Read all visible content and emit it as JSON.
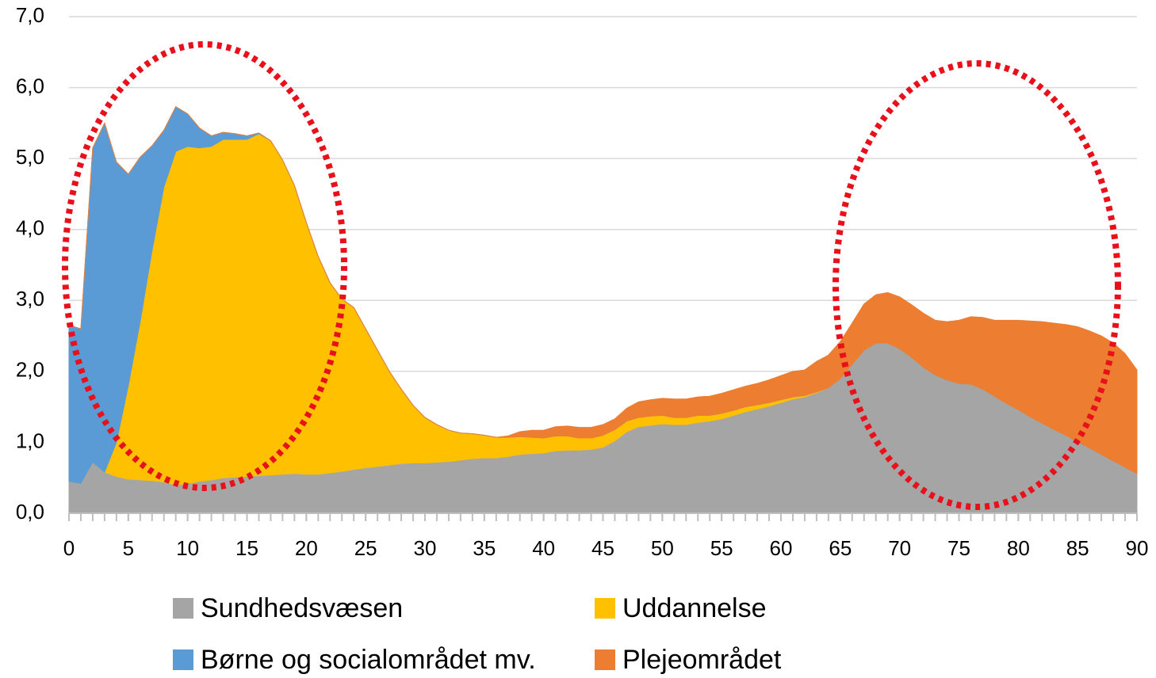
{
  "chart_data": {
    "type": "stacked_area",
    "x": [
      0,
      1,
      2,
      3,
      4,
      5,
      6,
      7,
      8,
      9,
      10,
      11,
      12,
      13,
      14,
      15,
      16,
      17,
      18,
      19,
      20,
      21,
      22,
      23,
      24,
      25,
      26,
      27,
      28,
      29,
      30,
      31,
      32,
      33,
      34,
      35,
      36,
      37,
      38,
      39,
      40,
      41,
      42,
      43,
      44,
      45,
      46,
      47,
      48,
      49,
      50,
      51,
      52,
      53,
      54,
      55,
      56,
      57,
      58,
      59,
      60,
      61,
      62,
      63,
      64,
      65,
      66,
      67,
      68,
      69,
      70,
      71,
      72,
      73,
      74,
      75,
      76,
      77,
      78,
      79,
      80,
      81,
      82,
      83,
      84,
      85,
      86,
      87,
      88,
      89,
      90
    ],
    "series": [
      {
        "name": "Sundhedsvæsen",
        "color": "#a5a5a5",
        "values": [
          0.45,
          0.42,
          0.72,
          0.58,
          0.52,
          0.48,
          0.47,
          0.46,
          0.44,
          0.4,
          0.42,
          0.45,
          0.47,
          0.5,
          0.51,
          0.52,
          0.53,
          0.54,
          0.55,
          0.56,
          0.55,
          0.55,
          0.57,
          0.59,
          0.62,
          0.64,
          0.66,
          0.68,
          0.7,
          0.71,
          0.71,
          0.72,
          0.73,
          0.75,
          0.77,
          0.78,
          0.78,
          0.8,
          0.83,
          0.84,
          0.85,
          0.88,
          0.89,
          0.89,
          0.9,
          0.93,
          1.02,
          1.15,
          1.22,
          1.24,
          1.26,
          1.25,
          1.25,
          1.28,
          1.3,
          1.33,
          1.38,
          1.43,
          1.47,
          1.51,
          1.56,
          1.61,
          1.64,
          1.7,
          1.77,
          1.9,
          2.1,
          2.3,
          2.4,
          2.4,
          2.32,
          2.2,
          2.06,
          1.95,
          1.88,
          1.83,
          1.82,
          1.75,
          1.65,
          1.55,
          1.46,
          1.36,
          1.27,
          1.18,
          1.1,
          1.01,
          0.92,
          0.83,
          0.74,
          0.65,
          0.56
        ]
      },
      {
        "name": "Uddannelse",
        "color": "#ffc000",
        "values": [
          0,
          0,
          0,
          0,
          0.48,
          1.32,
          2.23,
          3.24,
          4.16,
          4.7,
          4.75,
          4.7,
          4.7,
          4.77,
          4.76,
          4.75,
          4.82,
          4.71,
          4.43,
          4.06,
          3.55,
          3.07,
          2.68,
          2.43,
          2.28,
          1.96,
          1.64,
          1.32,
          1.05,
          0.81,
          0.64,
          0.53,
          0.44,
          0.38,
          0.35,
          0.32,
          0.29,
          0.27,
          0.25,
          0.23,
          0.21,
          0.21,
          0.2,
          0.17,
          0.16,
          0.17,
          0.16,
          0.15,
          0.13,
          0.13,
          0.12,
          0.1,
          0.1,
          0.1,
          0.08,
          0.08,
          0.07,
          0.07,
          0.06,
          0.05,
          0.04,
          0.03,
          0.02,
          0.01,
          0,
          0,
          0,
          0,
          0,
          0,
          0,
          0,
          0,
          0,
          0,
          0,
          0,
          0,
          0,
          0,
          0,
          0,
          0,
          0,
          0,
          0,
          0,
          0,
          0,
          0,
          0
        ]
      },
      {
        "name": "Børne og socialområdet mv.",
        "color": "#5b9bd5",
        "values": [
          2.2,
          2.18,
          4.43,
          4.92,
          3.95,
          2.98,
          2.32,
          1.48,
          0.8,
          0.63,
          0.46,
          0.28,
          0.15,
          0.1,
          0.08,
          0.05,
          0.01,
          0,
          0,
          0,
          0,
          0,
          0,
          0,
          0,
          0,
          0,
          0,
          0,
          0,
          0,
          0,
          0,
          0,
          0,
          0,
          0,
          0,
          0,
          0,
          0,
          0,
          0,
          0,
          0,
          0,
          0,
          0,
          0,
          0,
          0,
          0,
          0,
          0,
          0,
          0,
          0,
          0,
          0,
          0,
          0,
          0,
          0,
          0,
          0,
          0,
          0,
          0,
          0,
          0,
          0,
          0,
          0,
          0,
          0,
          0,
          0,
          0,
          0,
          0,
          0,
          0,
          0,
          0,
          0,
          0,
          0,
          0,
          0,
          0,
          0
        ]
      },
      {
        "name": "Plejeområdet",
        "color": "#ed7d31",
        "values": [
          0,
          0,
          0,
          0,
          0,
          0,
          0,
          0,
          0,
          0,
          0,
          0,
          0,
          0,
          0,
          0,
          0,
          0,
          0,
          0,
          0,
          0,
          0,
          0,
          0,
          0,
          0,
          0,
          0,
          0,
          0,
          0,
          0,
          0,
          0,
          0,
          0,
          0.02,
          0.07,
          0.1,
          0.11,
          0.13,
          0.14,
          0.15,
          0.15,
          0.15,
          0.15,
          0.18,
          0.22,
          0.23,
          0.24,
          0.26,
          0.26,
          0.26,
          0.27,
          0.28,
          0.29,
          0.29,
          0.3,
          0.32,
          0.34,
          0.36,
          0.36,
          0.43,
          0.46,
          0.52,
          0.58,
          0.65,
          0.68,
          0.71,
          0.73,
          0.74,
          0.76,
          0.77,
          0.82,
          0.89,
          0.95,
          1.01,
          1.07,
          1.17,
          1.26,
          1.35,
          1.43,
          1.5,
          1.56,
          1.62,
          1.65,
          1.67,
          1.66,
          1.6,
          1.46
        ]
      }
    ],
    "xlim": [
      0,
      90
    ],
    "xticks": [
      0,
      5,
      10,
      15,
      20,
      25,
      30,
      35,
      40,
      45,
      50,
      55,
      60,
      65,
      70,
      75,
      80,
      85,
      90
    ],
    "ylim": [
      0,
      7
    ],
    "yticks": [
      {
        "value": 0,
        "label": "0,0"
      },
      {
        "value": 1,
        "label": "1,0"
      },
      {
        "value": 2,
        "label": "2,0"
      },
      {
        "value": 3,
        "label": "3,0"
      },
      {
        "value": 4,
        "label": "4,0"
      },
      {
        "value": 5,
        "label": "5,0"
      },
      {
        "value": 6,
        "label": "6,0"
      },
      {
        "value": 7,
        "label": "7,0"
      }
    ],
    "grid": true
  }
}
